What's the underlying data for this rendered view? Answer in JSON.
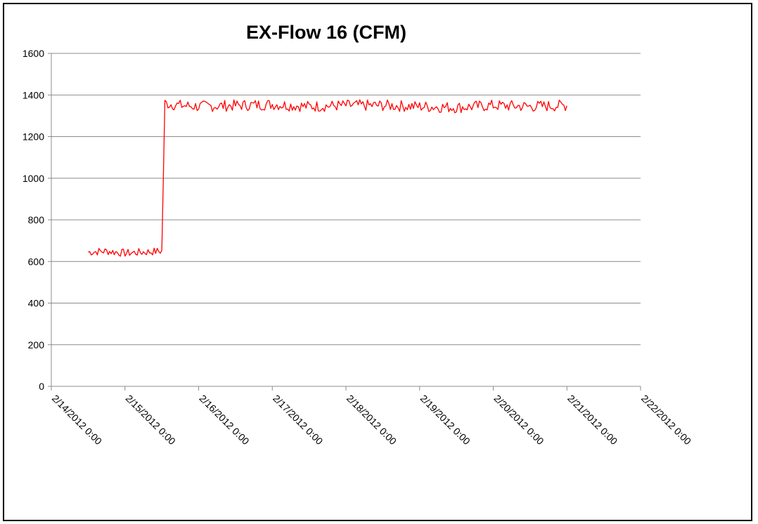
{
  "chart_data": {
    "type": "line",
    "title": "EX-Flow 16 (CFM)",
    "xlabel": "",
    "ylabel": "",
    "ylim": [
      0,
      1600
    ],
    "yticks": [
      "0",
      "200",
      "400",
      "600",
      "800",
      "1000",
      "1200",
      "1400",
      "1600"
    ],
    "xticks": [
      "2/14/2012 0:00",
      "2/15/2012 0:00",
      "2/16/2012 0:00",
      "2/17/2012 0:00",
      "2/18/2012 0:00",
      "2/19/2012 0:00",
      "2/20/2012 0:00",
      "2/21/2012 0:00",
      "2/22/2012 0:00"
    ],
    "xlim": [
      "2/14/2012 0:00",
      "2/22/2012 0:00"
    ],
    "grid": "horizontal",
    "legend": "none",
    "series_color": "#ff0000",
    "series": [
      {
        "x": [
          "2/14/2012 12:00",
          "2/14/2012 18:00",
          "2/15/2012 0:00",
          "2/15/2012 6:00",
          "2/15/2012 12:00",
          "2/15/2012 13:00",
          "2/15/2012 18:00",
          "2/16/2012 0:00",
          "2/16/2012 12:00",
          "2/17/2012 0:00",
          "2/17/2012 12:00",
          "2/18/2012 0:00",
          "2/18/2012 12:00",
          "2/19/2012 0:00",
          "2/19/2012 12:00",
          "2/20/2012 0:00",
          "2/20/2012 12:00",
          "2/21/2012 0:00"
        ],
        "values": [
          645,
          650,
          640,
          645,
          650,
          1360,
          1350,
          1345,
          1350,
          1355,
          1345,
          1350,
          1350,
          1345,
          1340,
          1350,
          1345,
          1350
        ]
      }
    ]
  }
}
